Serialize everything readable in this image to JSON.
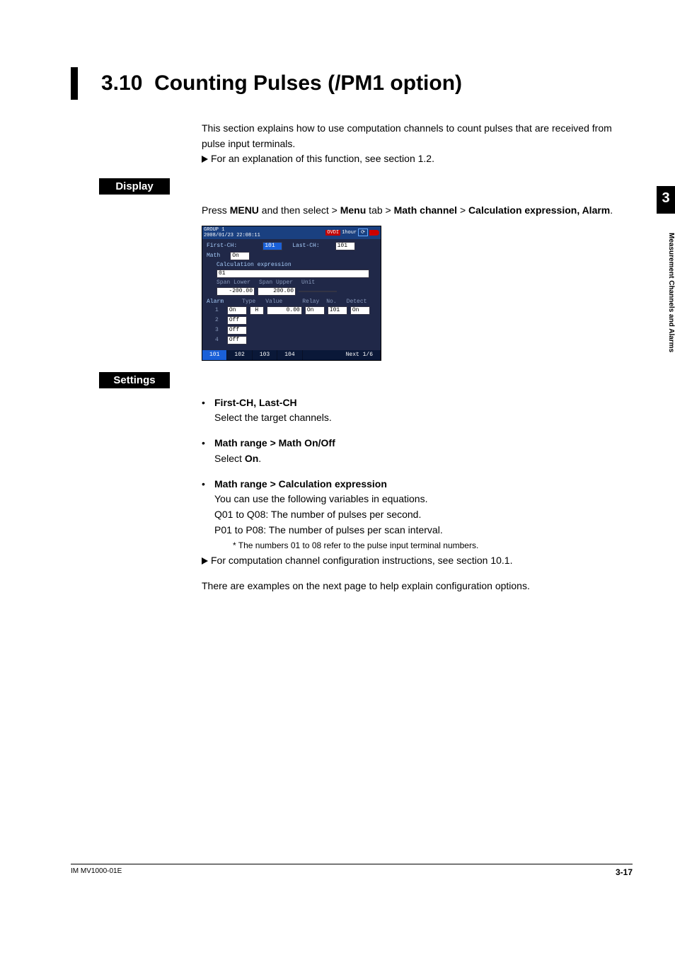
{
  "title": {
    "number": "3.10",
    "text": "Counting Pulses (/PM1 option)"
  },
  "intro": {
    "p1": "This section explains how to use computation channels to count pulses that are received from pulse input terminals.",
    "p2": "For an explanation of this function, see section 1.2."
  },
  "section_display": {
    "label": "Display",
    "instruction_prefix": "Press ",
    "menu": "MENU",
    "mid1": " and then select > ",
    "menu_tab": "Menu",
    "mid2": " tab > ",
    "math_channel": "Math channel",
    "mid3": " > ",
    "calc": "Calculation expression, Alarm",
    "period": "."
  },
  "screenshot": {
    "header_line1": "GROUP 1",
    "header_line2": "2008/01/23 22:08:11",
    "header_badge": "OVDI",
    "header_mode": "1hour",
    "first_ch_label": "First-CH:",
    "first_ch_val": "101",
    "last_ch_label": "Last-CH:",
    "last_ch_val": "101",
    "math_label": "Math",
    "math_val": "On",
    "calc_label": "Calculation expression",
    "calc_val": "01",
    "span_lower_label": "Span Lower",
    "span_lower_val": "-200.00",
    "span_upper_label": "Span Upper",
    "span_upper_val": "200.00",
    "unit_label": "Unit",
    "unit_val": "",
    "alarm_label": "Alarm",
    "col_type": "Type",
    "col_value": "Value",
    "col_relay": "Relay",
    "col_no": "No.",
    "col_detect": "Detect",
    "rows": [
      {
        "n": "1",
        "on": "On",
        "type": "H",
        "value": "0.00",
        "relay": "On",
        "no": "I01",
        "detect": "On"
      },
      {
        "n": "2",
        "on": "Off"
      },
      {
        "n": "3",
        "on": "Off"
      },
      {
        "n": "4",
        "on": "Off"
      }
    ],
    "tabs": [
      "101",
      "102",
      "103",
      "104"
    ],
    "tabs_right": "Next 1/6"
  },
  "section_settings": {
    "label": "Settings",
    "items": [
      {
        "title": "First-CH, Last-CH",
        "lines": [
          "Select the target channels."
        ]
      },
      {
        "title": "Math range > Math On/Off",
        "lines": [
          "Select <b>On</b>."
        ]
      },
      {
        "title": "Math range > Calculation expression",
        "lines": [
          "You can use the following variables in equations.",
          "Q01 to Q08: The number of pulses per second.",
          "P01 to P08: The number of pulses per scan interval."
        ],
        "note": "*  The numbers 01 to 08 refer to the pulse input terminal numbers.",
        "pointer_after": "For computation channel configuration instructions, see section 10.1."
      }
    ],
    "closing": "There are examples on the next page to help explain configuration options."
  },
  "side": {
    "chapter": "3",
    "label": "Measurement Channels and Alarms"
  },
  "footer": {
    "left": "IM MV1000-01E",
    "right": "3-17"
  }
}
